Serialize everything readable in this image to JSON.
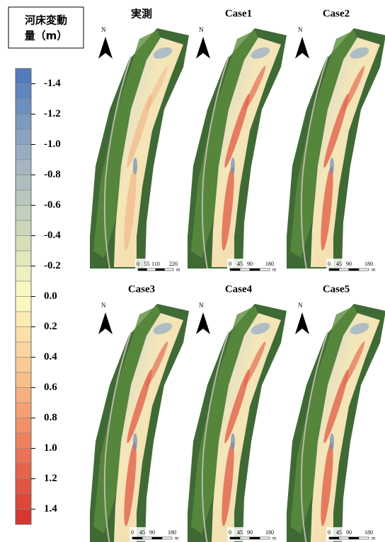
{
  "legend": {
    "title_lines": [
      "河床変動",
      "量（m）"
    ],
    "lim": [
      -1.5,
      1.5
    ],
    "ticks": [
      -1.4,
      -1.2,
      {
        "value": -1.0,
        "label": "-1.0"
      },
      -0.8,
      -0.6,
      -0.4,
      -0.2,
      {
        "value": 0.0,
        "label": "0.0"
      },
      0.2,
      0.4,
      0.6,
      0.8,
      {
        "value": 1.0,
        "label": "1.0"
      },
      1.2,
      1.4
    ]
  },
  "panels": [
    {
      "title": "実測",
      "north": "N",
      "scale_labels": [
        "0",
        "55",
        "110",
        "220"
      ],
      "scale_unit": "m"
    },
    {
      "title": "Case1",
      "north": "N",
      "scale_labels": [
        "0",
        "45",
        "90",
        "180"
      ],
      "scale_unit": "m"
    },
    {
      "title": "Case2",
      "north": "N",
      "scale_labels": [
        "0",
        "45",
        "90",
        "180"
      ],
      "scale_unit": "m"
    },
    {
      "title": "Case3",
      "north": "N",
      "scale_labels": [
        "0",
        "45",
        "90",
        "180"
      ],
      "scale_unit": "m"
    },
    {
      "title": "Case4",
      "north": "N",
      "scale_labels": [
        "0",
        "45",
        "90",
        "180"
      ],
      "scale_unit": "m"
    },
    {
      "title": "Case5",
      "north": "N",
      "scale_labels": [
        "0",
        "45",
        "90",
        "180"
      ],
      "scale_unit": "m"
    }
  ]
}
